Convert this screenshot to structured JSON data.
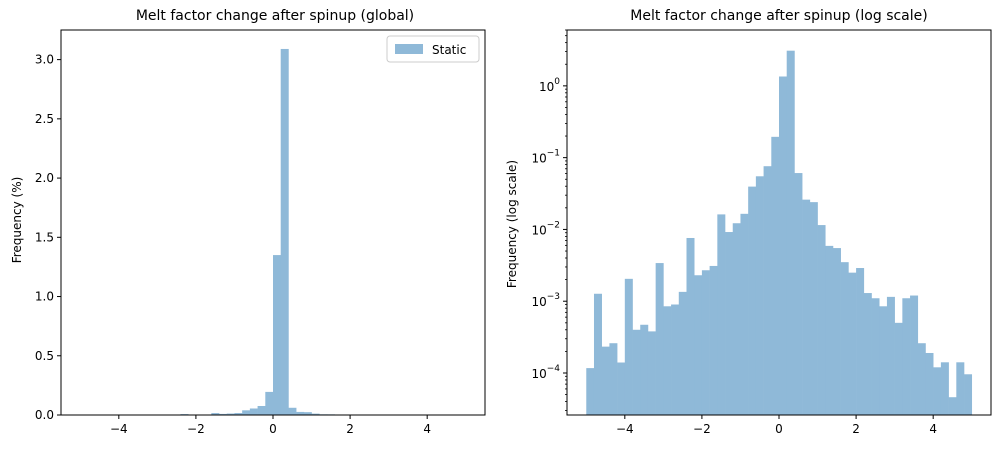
{
  "chart_data": [
    {
      "type": "bar",
      "title": "Melt factor change after spinup (global)",
      "xlabel": "",
      "ylabel": "Frequency (%)",
      "xlim": [
        -5.5,
        5.5
      ],
      "ylim": [
        0,
        3.25
      ],
      "yscale": "linear",
      "bin_start": -5.0,
      "bin_width": 0.2,
      "series": [
        {
          "name": "Static",
          "color": "#8fb9d8",
          "values": [
            0.000117,
            0.00127,
            0.000233,
            0.00026,
            0.00014,
            0.00205,
            0.0004,
            0.00047,
            0.00038,
            0.0034,
            0.00085,
            0.0009,
            0.00135,
            0.0076,
            0.0023,
            0.0027,
            0.0031,
            0.0162,
            0.0092,
            0.0122,
            0.0165,
            0.0395,
            0.055,
            0.076,
            0.195,
            1.35,
            3.09,
            0.061,
            0.026,
            0.024,
            0.0115,
            0.0059,
            0.0055,
            0.0035,
            0.0025,
            0.0029,
            0.0013,
            0.0011,
            0.00085,
            0.00115,
            0.0005,
            0.0011,
            0.0012,
            0.00026,
            0.00019,
            0.00012,
            0.000141,
            4.6e-05,
            0.000141,
            9.6e-05
          ]
        }
      ],
      "xticks": [
        -4,
        -2,
        0,
        2,
        4
      ],
      "xtick_labels": [
        "−4",
        "−2",
        "0",
        "2",
        "4"
      ],
      "yticks": [
        0.0,
        0.5,
        1.0,
        1.5,
        2.0,
        2.5,
        3.0
      ],
      "ytick_labels": [
        "0.0",
        "0.5",
        "1.0",
        "1.5",
        "2.0",
        "2.5",
        "3.0"
      ],
      "legend": {
        "entries": [
          "Static"
        ],
        "position": "upper right"
      }
    },
    {
      "type": "bar",
      "title": "Melt factor change after spinup (log scale)",
      "xlabel": "",
      "ylabel": "Frequency (log scale)",
      "xlim": [
        -5.5,
        5.5
      ],
      "ylim": [
        2.6e-05,
        6.0
      ],
      "yscale": "log",
      "bin_start": -5.0,
      "bin_width": 0.2,
      "series": [
        {
          "name": "Static",
          "color": "#8fb9d8",
          "values": [
            0.000117,
            0.00127,
            0.000233,
            0.00026,
            0.00014,
            0.00205,
            0.0004,
            0.00047,
            0.00038,
            0.0034,
            0.00085,
            0.0009,
            0.00135,
            0.0076,
            0.0023,
            0.0027,
            0.0031,
            0.0162,
            0.0092,
            0.0122,
            0.0165,
            0.0395,
            0.055,
            0.076,
            0.195,
            1.35,
            3.09,
            0.061,
            0.026,
            0.024,
            0.0115,
            0.0059,
            0.0055,
            0.0035,
            0.0025,
            0.0029,
            0.0013,
            0.0011,
            0.00085,
            0.00115,
            0.0005,
            0.0011,
            0.0012,
            0.00026,
            0.00019,
            0.00012,
            0.000141,
            4.6e-05,
            0.000141,
            9.6e-05
          ]
        }
      ],
      "xticks": [
        -4,
        -2,
        0,
        2,
        4
      ],
      "xtick_labels": [
        "−4",
        "−2",
        "0",
        "2",
        "4"
      ],
      "yticks": [
        0.0001,
        0.001,
        0.01,
        0.1,
        1
      ],
      "ytick_labels": [
        {
          "base": "10",
          "exp": "−4"
        },
        {
          "base": "10",
          "exp": "−3"
        },
        {
          "base": "10",
          "exp": "−2"
        },
        {
          "base": "10",
          "exp": "−1"
        },
        {
          "base": "10",
          "exp": "0"
        }
      ],
      "legend": null
    }
  ]
}
